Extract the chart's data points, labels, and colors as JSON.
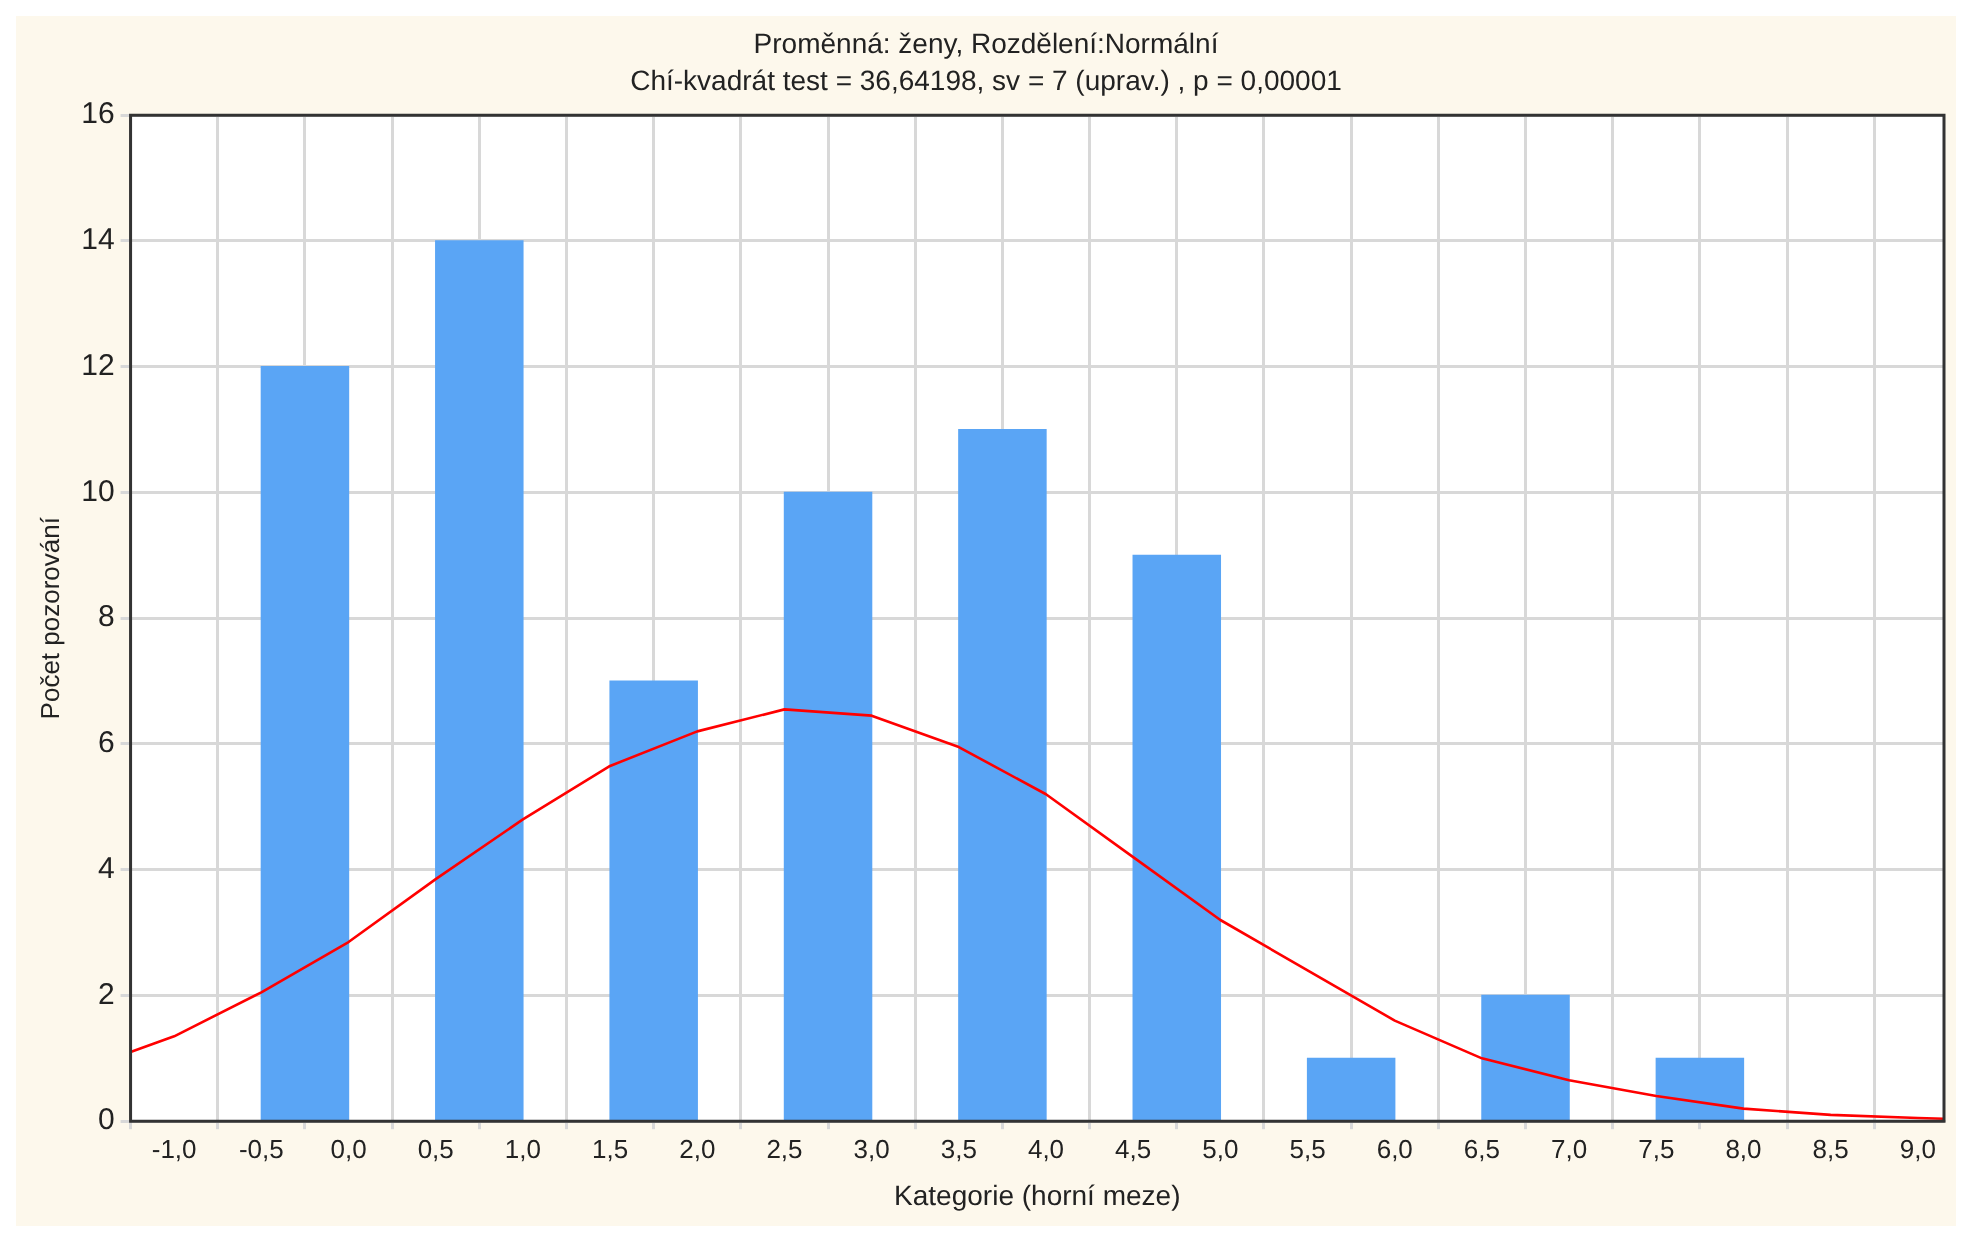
{
  "chart_data": {
    "type": "bar",
    "title": "Proměnná: ženy, Rozdělení:Normální",
    "subtitle": "Chí-kvadrát test = 36,64198, sv = 7 (uprav.) , p = 0,00001",
    "xlabel": "Kategorie (horní meze)",
    "ylabel": "Počet pozorování",
    "x": [
      -0.25,
      0.75,
      1.75,
      2.75,
      3.75,
      4.75,
      5.75,
      6.75,
      7.75,
      8.75
    ],
    "values": [
      12,
      14,
      7,
      10,
      11,
      9,
      1,
      2,
      1,
      0
    ],
    "color": "#5aa5f5",
    "series": [
      {
        "type": "line",
        "color": "#ff0000",
        "x": [
          -1.25,
          -1,
          -0.5,
          0,
          0.5,
          1,
          1.5,
          2,
          2.5,
          3,
          3.5,
          4,
          4.5,
          5,
          5.5,
          6,
          6.5,
          7,
          7.5,
          8,
          8.5,
          9,
          9.15
        ],
        "values": [
          1.1,
          1.35,
          2.05,
          2.85,
          3.85,
          4.8,
          5.65,
          6.2,
          6.55,
          6.45,
          5.95,
          5.2,
          4.2,
          3.2,
          2.4,
          1.6,
          1.0,
          0.65,
          0.4,
          0.2,
          0.1,
          0.05,
          0.04
        ]
      }
    ],
    "xlim": [
      -1.25,
      9.15
    ],
    "xticks": [
      {
        "value": -1,
        "label": "-1,0"
      },
      {
        "value": -0.5,
        "label": "-0,5"
      },
      {
        "value": 0,
        "label": "0,0"
      },
      {
        "value": 0.5,
        "label": "0,5"
      },
      {
        "value": 1,
        "label": "1,0"
      },
      {
        "value": 1.5,
        "label": "1,5"
      },
      {
        "value": 2,
        "label": "2,0"
      },
      {
        "value": 2.5,
        "label": "2,5"
      },
      {
        "value": 3,
        "label": "3,0"
      },
      {
        "value": 3.5,
        "label": "3,5"
      },
      {
        "value": 4,
        "label": "4,0"
      },
      {
        "value": 4.5,
        "label": "4,5"
      },
      {
        "value": 5,
        "label": "5,0"
      },
      {
        "value": 5.5,
        "label": "5,5"
      },
      {
        "value": 6,
        "label": "6,0"
      },
      {
        "value": 6.5,
        "label": "6,5"
      },
      {
        "value": 7,
        "label": "7,0"
      },
      {
        "value": 7.5,
        "label": "7,5"
      },
      {
        "value": 8,
        "label": "8,0"
      },
      {
        "value": 8.5,
        "label": "8,5"
      },
      {
        "value": 9,
        "label": "9,0"
      }
    ],
    "ylim": [
      0,
      16
    ],
    "yticks": [
      0,
      2,
      4,
      6,
      8,
      10,
      12,
      14,
      16
    ],
    "grid": true,
    "legend": false,
    "marker": "none",
    "line_style": "solid"
  }
}
